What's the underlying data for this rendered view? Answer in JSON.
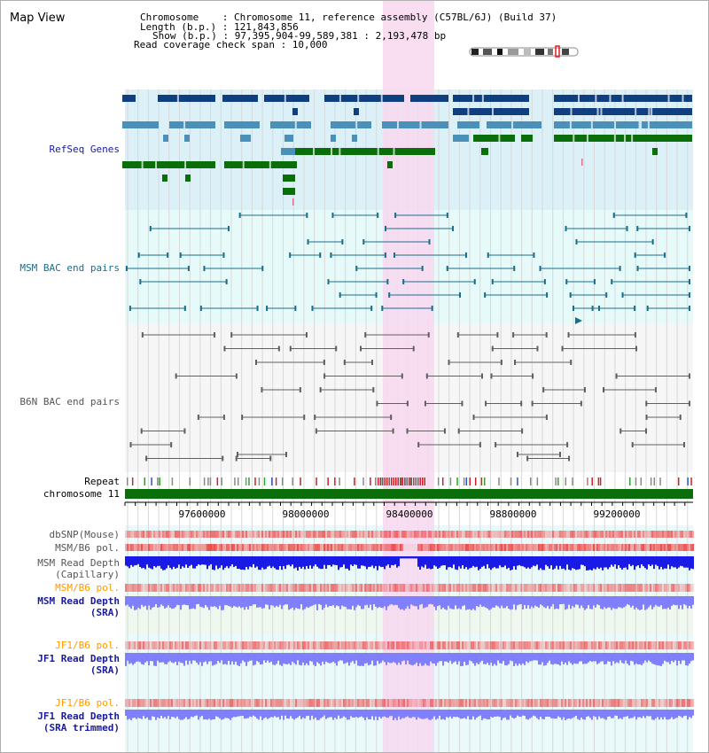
{
  "app": {
    "title": "Map View"
  },
  "info": {
    "line1": "Chromosome    : Chromosome 11, reference assembly (C57BL/6J) (Build 37)",
    "line2": "Length (b.p.) : 121,843,856",
    "line3": "Show (b.p.) : 97,395,904-99,589,381 : 2,193,478 bp",
    "line4": "Read coverage check span : 10,000"
  },
  "colors": {
    "refseq_bg": "#dcf0f8",
    "msm_bac_bg": "#e6fafa",
    "b6n_bac_bg": "#f6f6f6",
    "highlight": "#f8d8f0",
    "refseq_dark": "#0f3f7f",
    "refseq_mid": "#4a90b8",
    "refseq_green": "#0a6e0a",
    "msm_bac_line": "#1a6e8c",
    "b6n_bac_line": "#606060",
    "chromosome_bar": "#0a6e0a",
    "depth_blue": "#1a1ae6",
    "depth_light": "#8080ff",
    "snp_red": "#ee4444",
    "label_navy": "#1a1a9c",
    "label_teal": "#1a6e8c",
    "label_gray": "#555555",
    "label_orange": "#ff9900"
  },
  "tracks": {
    "refseq_genes": "RefSeq Genes",
    "msm_bac": "MSM BAC end pairs",
    "b6n_bac": "B6N BAC end pairs",
    "repeat": "Repeat",
    "chromosome": "chromosome 11",
    "dbsnp": "dbSNP(Mouse)",
    "msm_b6_pol_1": "MSM/B6 pol.",
    "msm_depth_cap_1": "MSM Read Depth",
    "msm_depth_cap_2": "(Capillary)",
    "msm_b6_pol_2": "MSM/B6 pol.",
    "msm_depth_sra_1": "MSM Read Depth",
    "msm_depth_sra_2": "(SRA)",
    "jf1_b6_pol_1": "JF1/B6 pol.",
    "jf1_depth_sra_1": "JF1 Read Depth",
    "jf1_depth_sra_2": "(SRA)",
    "jf1_b6_pol_2": "JF1/B6 pol.",
    "jf1_depth_trim_1": "JF1 Read Depth",
    "jf1_depth_trim_2": "(SRA trimmed)"
  },
  "axis": {
    "ticks": [
      "97600000",
      "98000000",
      "98400000",
      "98800000",
      "99200000"
    ]
  }
}
